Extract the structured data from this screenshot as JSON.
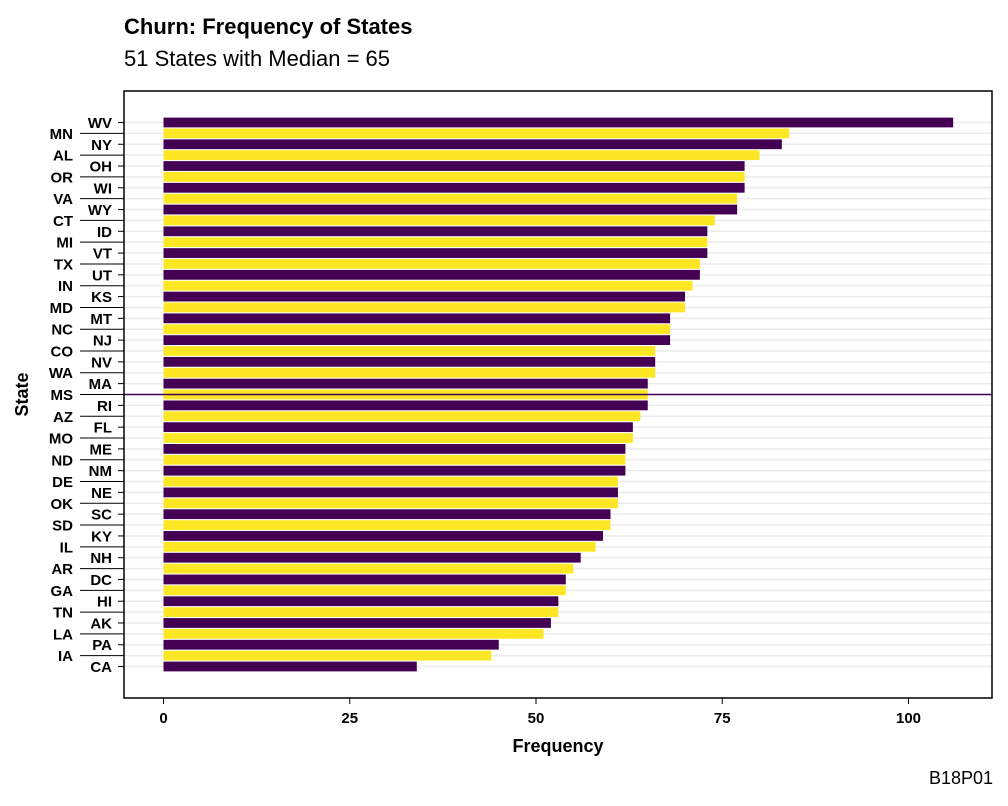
{
  "title": "Churn: Frequency of States",
  "subtitle": "51 States with Median = 65",
  "caption": "B18P01",
  "colors": {
    "dark": "#440154",
    "light": "#FDE725",
    "grid": "#EBEBEB",
    "median_line": "#440154"
  },
  "chart_data": {
    "type": "bar",
    "orientation": "horizontal",
    "title": "Churn: Frequency of States",
    "subtitle": "51 States with Median = 65",
    "xlabel": "Frequency",
    "ylabel": "State",
    "xlim": [
      0,
      110
    ],
    "xticks": [
      0,
      25,
      50,
      75,
      100
    ],
    "median": 65,
    "grid": "horizontal",
    "legend": "none",
    "categories": [
      "WV",
      "MN",
      "NY",
      "AL",
      "OH",
      "OR",
      "WI",
      "VA",
      "WY",
      "CT",
      "ID",
      "MI",
      "VT",
      "TX",
      "UT",
      "IN",
      "KS",
      "MD",
      "MT",
      "NC",
      "NJ",
      "CO",
      "NV",
      "WA",
      "MA",
      "MS",
      "RI",
      "AZ",
      "FL",
      "MO",
      "ME",
      "ND",
      "NM",
      "DE",
      "NE",
      "OK",
      "SC",
      "SD",
      "KY",
      "IL",
      "NH",
      "AR",
      "DC",
      "GA",
      "HI",
      "TN",
      "AK",
      "LA",
      "PA",
      "IA",
      "CA"
    ],
    "values": [
      106,
      84,
      83,
      80,
      78,
      78,
      78,
      77,
      77,
      74,
      73,
      73,
      73,
      72,
      72,
      71,
      70,
      70,
      68,
      68,
      68,
      66,
      66,
      66,
      65,
      65,
      65,
      64,
      63,
      63,
      62,
      62,
      62,
      61,
      61,
      61,
      60,
      60,
      59,
      58,
      56,
      55,
      54,
      54,
      53,
      53,
      52,
      51,
      45,
      44,
      34
    ]
  }
}
